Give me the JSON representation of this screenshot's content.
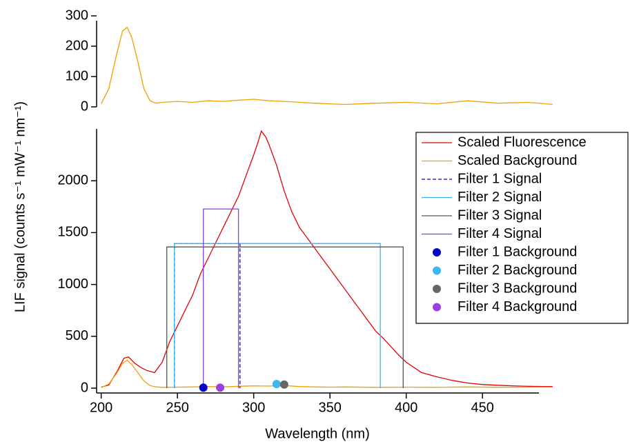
{
  "chart_data": [
    {
      "type": "line",
      "xlim": [
        197,
        487
      ],
      "ylim": [
        0,
        300
      ],
      "yticks": [
        0,
        100,
        200,
        300
      ],
      "series": [
        {
          "color": "#f0a000",
          "style": "line",
          "x": [
            200,
            205,
            210,
            214,
            217,
            220,
            224,
            228,
            232,
            236,
            240,
            250,
            260,
            270,
            280,
            290,
            300,
            310,
            320,
            330,
            340,
            350,
            360,
            380,
            400,
            420,
            440,
            460,
            480,
            496
          ],
          "values": [
            10,
            60,
            170,
            250,
            262,
            230,
            150,
            60,
            20,
            12,
            15,
            18,
            15,
            20,
            18,
            22,
            25,
            20,
            18,
            15,
            12,
            10,
            8,
            12,
            15,
            10,
            20,
            12,
            15,
            8
          ]
        }
      ]
    },
    {
      "type": "line",
      "xlim": [
        197,
        487
      ],
      "ylim": [
        0,
        2500
      ],
      "xticks": [
        200,
        250,
        300,
        350,
        400,
        450
      ],
      "yticks": [
        0,
        500,
        1000,
        1500,
        2000
      ],
      "xlabel": "Wavelength (nm)",
      "ylabel": "LIF signal (counts s⁻¹ mW⁻¹ nm⁻¹)",
      "legend": "upper right",
      "series": [
        {
          "name": "Scaled Fluorescence",
          "color": "#e00000",
          "style": "line",
          "x": [
            200,
            205,
            210,
            215,
            218,
            222,
            226,
            230,
            235,
            240,
            245,
            250,
            255,
            260,
            265,
            270,
            275,
            280,
            285,
            290,
            295,
            300,
            303,
            305,
            308,
            310,
            315,
            320,
            325,
            330,
            335,
            340,
            345,
            350,
            355,
            360,
            365,
            370,
            375,
            380,
            385,
            390,
            395,
            400,
            405,
            410,
            420,
            430,
            440,
            450,
            460,
            470,
            480,
            490,
            496
          ],
          "values": [
            10,
            30,
            150,
            290,
            300,
            240,
            200,
            170,
            150,
            250,
            450,
            600,
            750,
            900,
            1100,
            1250,
            1400,
            1550,
            1700,
            1850,
            2050,
            2250,
            2380,
            2480,
            2420,
            2350,
            2150,
            1900,
            1700,
            1550,
            1450,
            1350,
            1250,
            1150,
            1050,
            950,
            850,
            750,
            650,
            550,
            480,
            400,
            320,
            250,
            200,
            150,
            110,
            75,
            50,
            35,
            28,
            22,
            18,
            15,
            15
          ]
        },
        {
          "name": "Scaled Background",
          "color": "#f0a000",
          "style": "line",
          "x": [
            200,
            205,
            210,
            214,
            217,
            220,
            224,
            228,
            232,
            236,
            240,
            250,
            260,
            270,
            280,
            290,
            300,
            310,
            320,
            330,
            340,
            350,
            360,
            380,
            400,
            420,
            440,
            460,
            480,
            496
          ],
          "values": [
            5,
            40,
            140,
            240,
            270,
            230,
            150,
            70,
            25,
            12,
            8,
            10,
            12,
            15,
            12,
            18,
            22,
            20,
            25,
            15,
            12,
            10,
            12,
            8,
            10,
            8,
            12,
            8,
            10,
            10
          ]
        },
        {
          "name": "Filter 1 Signal",
          "color": "#0000ff",
          "style": "dashed",
          "x": [
            248,
            248,
            291,
            291
          ],
          "values": [
            0,
            1395,
            1395,
            0
          ]
        },
        {
          "name": "Filter 2 Signal",
          "color": "#3ab0f0",
          "style": "line",
          "x": [
            248,
            248,
            383,
            383
          ],
          "values": [
            0,
            1395,
            1395,
            0
          ]
        },
        {
          "name": "Filter 3 Signal",
          "color": "#555555",
          "style": "line",
          "x": [
            243,
            243,
            398,
            398
          ],
          "values": [
            0,
            1362,
            1362,
            0
          ]
        },
        {
          "name": "Filter 4 Signal",
          "color": "#8a3ee0",
          "style": "line",
          "x": [
            267,
            267,
            290,
            290
          ],
          "values": [
            0,
            1728,
            1728,
            0
          ]
        },
        {
          "name": "Filter 1 Background",
          "color": "#0000cc",
          "style": "marker",
          "x": [
            267
          ],
          "values": [
            5
          ]
        },
        {
          "name": "Filter 2 Background",
          "color": "#3ab8f5",
          "style": "marker",
          "x": [
            315
          ],
          "values": [
            40
          ]
        },
        {
          "name": "Filter 3 Background",
          "color": "#666666",
          "style": "marker",
          "x": [
            320
          ],
          "values": [
            35
          ]
        },
        {
          "name": "Filter 4 Background",
          "color": "#9a40e0",
          "style": "marker",
          "x": [
            278
          ],
          "values": [
            5
          ]
        }
      ]
    }
  ]
}
